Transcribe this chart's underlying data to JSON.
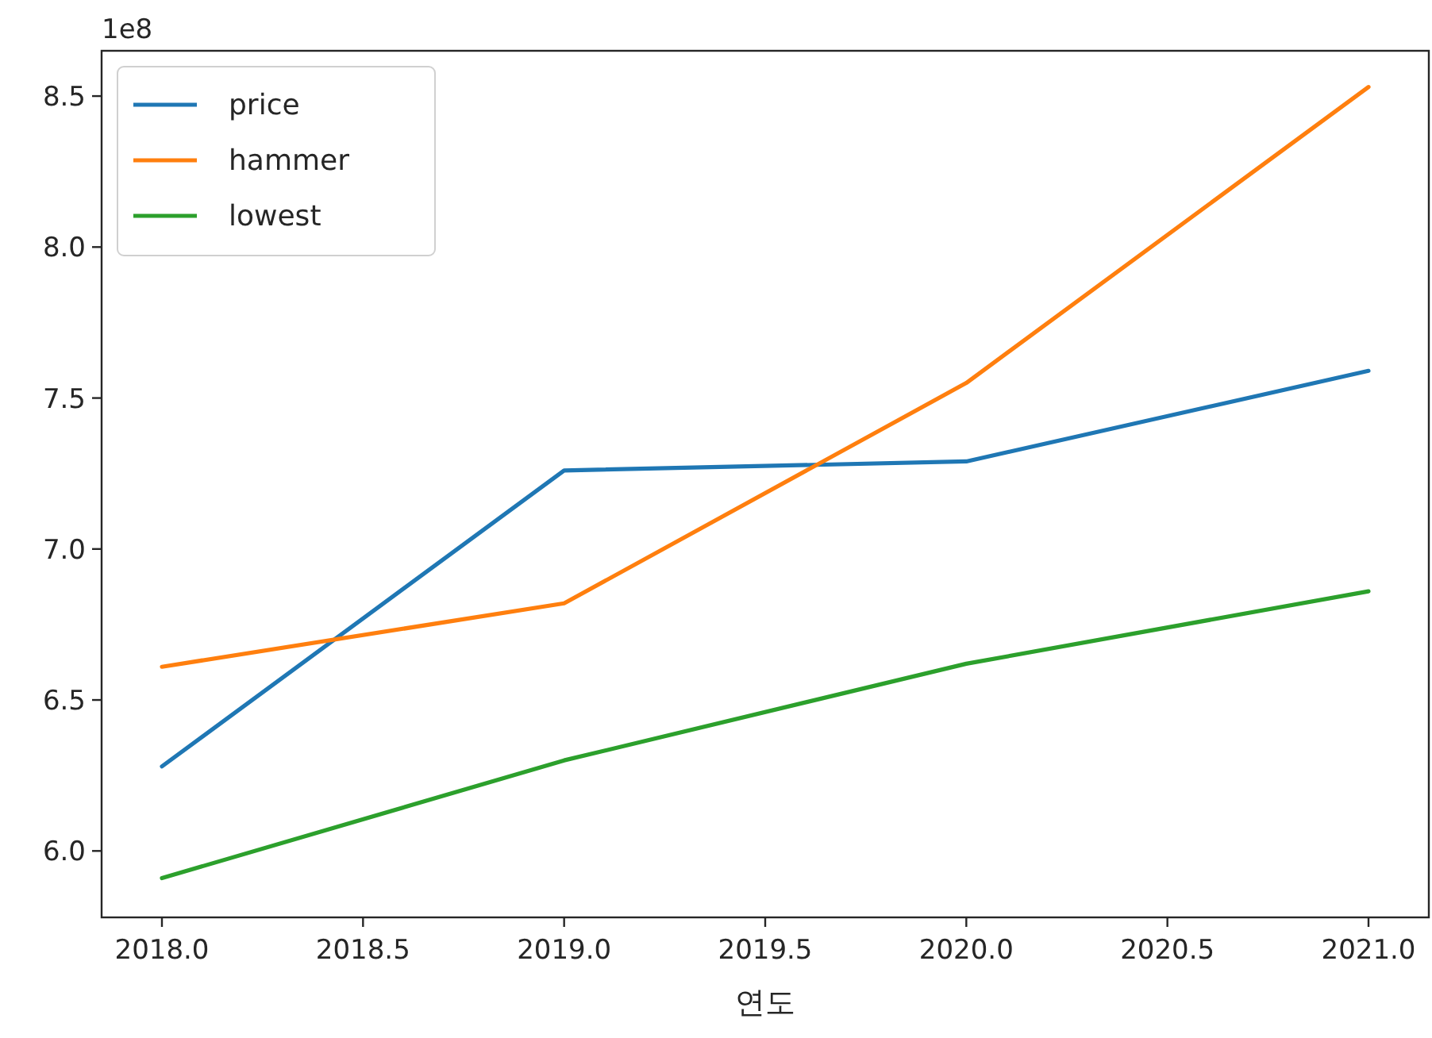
{
  "chart_data": {
    "type": "line",
    "xlabel": "연도",
    "annotations": [
      "1e8"
    ],
    "x": [
      2018,
      2019,
      2020,
      2021
    ],
    "series": [
      {
        "name": "price",
        "color": "#1f77b4",
        "values": [
          6.28,
          7.26,
          7.29,
          7.59
        ]
      },
      {
        "name": "hammer",
        "color": "#ff7f0e",
        "values": [
          6.61,
          6.82,
          7.55,
          8.53
        ]
      },
      {
        "name": "lowest",
        "color": "#2ca02c",
        "values": [
          5.91,
          6.3,
          6.62,
          6.86
        ]
      }
    ],
    "xlim": [
      2017.85,
      2021.15
    ],
    "ylim": [
      5.78,
      8.65
    ],
    "xticks": [
      {
        "value": 2018,
        "label": "2018.0"
      },
      {
        "value": 2018.5,
        "label": "2018.5"
      },
      {
        "value": 2019,
        "label": "2019.0"
      },
      {
        "value": 2019.5,
        "label": "2019.5"
      },
      {
        "value": 2020,
        "label": "2020.0"
      },
      {
        "value": 2020.5,
        "label": "2020.5"
      },
      {
        "value": 2021,
        "label": "2021.0"
      }
    ],
    "yticks": [
      {
        "value": 6,
        "label": "6.0"
      },
      6.5,
      {
        "value": 7,
        "label": "7.0"
      },
      7.5,
      {
        "value": 8,
        "label": "8.0"
      },
      8.5
    ],
    "legend": "top left",
    "grid": false,
    "marker": "none",
    "line_style": "solid"
  }
}
